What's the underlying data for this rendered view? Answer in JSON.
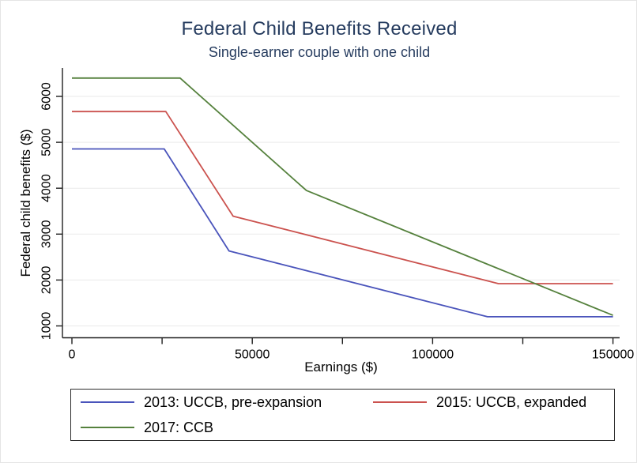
{
  "figure": {
    "title": "Federal Child Benefits Received",
    "subtitle": "Single-earner couple with one child",
    "title_color": "#263c5f",
    "background_color": "#ffffff"
  },
  "chart_data": {
    "type": "line",
    "title": "Federal Child Benefits Received",
    "subtitle": "Single-earner couple with one child",
    "xlabel": "Earnings ($)",
    "ylabel": "Federal child benefits ($)",
    "xlim": [
      0,
      150000
    ],
    "ylim": [
      750,
      6550
    ],
    "x_major_ticks": [
      0,
      50000,
      100000,
      150000
    ],
    "x_major_tick_labels": [
      "0",
      "50000",
      "100000",
      "150000"
    ],
    "x_minor_ticks": [
      25000,
      75000,
      125000
    ],
    "y_ticks": [
      1000,
      2000,
      3000,
      4000,
      5000,
      6000
    ],
    "y_tick_labels": [
      "1000",
      "2000",
      "3000",
      "4000",
      "5000",
      "6000"
    ],
    "grid": "horizontal",
    "gridline_color": "#eaeaea",
    "axis_color": "#1f1f1f",
    "legend_position": "bottom",
    "series": [
      {
        "label": "2013: UCCB, pre-expansion",
        "color": "#4a54bb",
        "points": [
          [
            0,
            4855
          ],
          [
            25584,
            4855
          ],
          [
            43561,
            2633
          ],
          [
            115211,
            1200
          ],
          [
            150000,
            1200
          ]
        ]
      },
      {
        "label": "2015: UCCB, expanded",
        "color": "#cb524e",
        "points": [
          [
            0,
            5670
          ],
          [
            26021,
            5670
          ],
          [
            44701,
            3391
          ],
          [
            118251,
            1920
          ],
          [
            150000,
            1920
          ]
        ]
      },
      {
        "label": "2017: CCB",
        "color": "#55813d",
        "points": [
          [
            0,
            6400
          ],
          [
            30000,
            6400
          ],
          [
            65000,
            3950
          ],
          [
            150000,
            1230
          ]
        ]
      }
    ]
  }
}
